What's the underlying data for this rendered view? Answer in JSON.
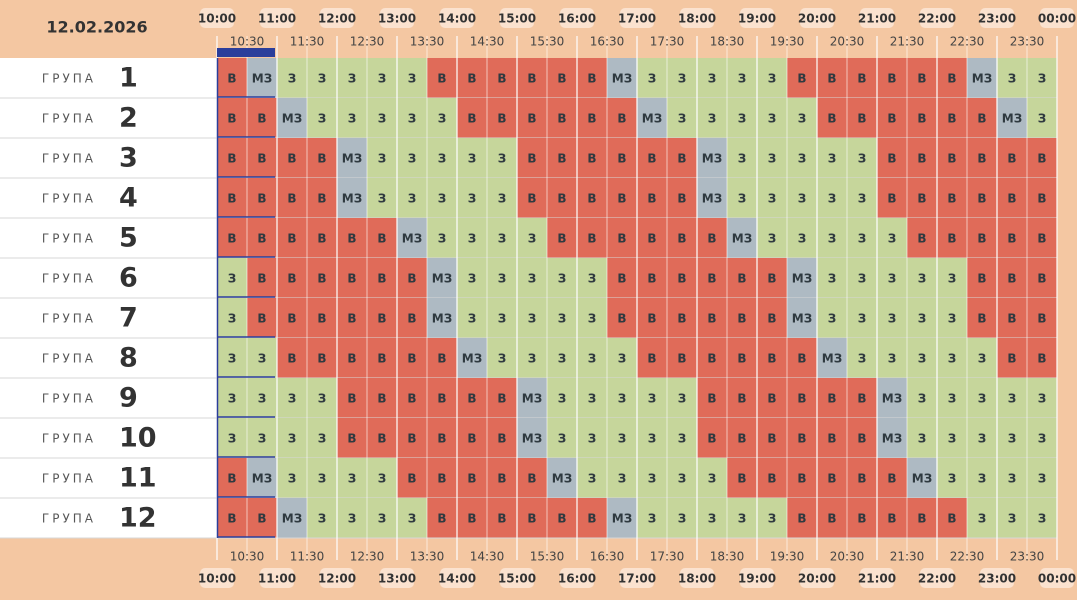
{
  "header": {
    "date": "12.02.2026",
    "hours": [
      "10:00",
      "11:00",
      "12:00",
      "13:00",
      "14:00",
      "15:00",
      "16:00",
      "17:00",
      "18:00",
      "19:00",
      "20:00",
      "21:00",
      "22:00",
      "23:00",
      "00:00"
    ],
    "half_hours": [
      "10:30",
      "11:30",
      "12:30",
      "13:30",
      "14:30",
      "15:30",
      "16:30",
      "17:30",
      "18:30",
      "19:30",
      "20:30",
      "21:30",
      "22:30",
      "23:30"
    ]
  },
  "colors": {
    "В": "#e06b59",
    "З": "#c6d69b",
    "МЗ": "#aebac3"
  },
  "groups": [
    {
      "label": "ГРУПА",
      "number": "1",
      "cells": [
        "В",
        "МЗ",
        "З",
        "З",
        "З",
        "З",
        "З",
        "В",
        "В",
        "В",
        "В",
        "В",
        "В",
        "МЗ",
        "З",
        "З",
        "З",
        "З",
        "З",
        "В",
        "В",
        "В",
        "В",
        "В",
        "В",
        "МЗ",
        "З",
        "З"
      ]
    },
    {
      "label": "ГРУПА",
      "number": "2",
      "cells": [
        "В",
        "В",
        "МЗ",
        "З",
        "З",
        "З",
        "З",
        "З",
        "В",
        "В",
        "В",
        "В",
        "В",
        "В",
        "МЗ",
        "З",
        "З",
        "З",
        "З",
        "З",
        "В",
        "В",
        "В",
        "В",
        "В",
        "В",
        "МЗ",
        "З"
      ]
    },
    {
      "label": "ГРУПА",
      "number": "3",
      "cells": [
        "В",
        "В",
        "В",
        "В",
        "МЗ",
        "З",
        "З",
        "З",
        "З",
        "З",
        "В",
        "В",
        "В",
        "В",
        "В",
        "В",
        "МЗ",
        "З",
        "З",
        "З",
        "З",
        "З",
        "В",
        "В",
        "В",
        "В",
        "В",
        "В"
      ]
    },
    {
      "label": "ГРУПА",
      "number": "4",
      "cells": [
        "В",
        "В",
        "В",
        "В",
        "МЗ",
        "З",
        "З",
        "З",
        "З",
        "З",
        "В",
        "В",
        "В",
        "В",
        "В",
        "В",
        "МЗ",
        "З",
        "З",
        "З",
        "З",
        "З",
        "В",
        "В",
        "В",
        "В",
        "В",
        "В"
      ]
    },
    {
      "label": "ГРУПА",
      "number": "5",
      "cells": [
        "В",
        "В",
        "В",
        "В",
        "В",
        "В",
        "МЗ",
        "З",
        "З",
        "З",
        "З",
        "В",
        "В",
        "В",
        "В",
        "В",
        "В",
        "МЗ",
        "З",
        "З",
        "З",
        "З",
        "З",
        "В",
        "В",
        "В",
        "В",
        "В"
      ]
    },
    {
      "label": "ГРУПА",
      "number": "6",
      "cells": [
        "З",
        "В",
        "В",
        "В",
        "В",
        "В",
        "В",
        "МЗ",
        "З",
        "З",
        "З",
        "З",
        "З",
        "В",
        "В",
        "В",
        "В",
        "В",
        "В",
        "МЗ",
        "З",
        "З",
        "З",
        "З",
        "З",
        "В",
        "В",
        "В"
      ]
    },
    {
      "label": "ГРУПА",
      "number": "7",
      "cells": [
        "З",
        "В",
        "В",
        "В",
        "В",
        "В",
        "В",
        "МЗ",
        "З",
        "З",
        "З",
        "З",
        "З",
        "В",
        "В",
        "В",
        "В",
        "В",
        "В",
        "МЗ",
        "З",
        "З",
        "З",
        "З",
        "З",
        "В",
        "В",
        "В"
      ]
    },
    {
      "label": "ГРУПА",
      "number": "8",
      "cells": [
        "З",
        "З",
        "В",
        "В",
        "В",
        "В",
        "В",
        "В",
        "МЗ",
        "З",
        "З",
        "З",
        "З",
        "З",
        "В",
        "В",
        "В",
        "В",
        "В",
        "В",
        "МЗ",
        "З",
        "З",
        "З",
        "З",
        "З",
        "В",
        "В"
      ]
    },
    {
      "label": "ГРУПА",
      "number": "9",
      "cells": [
        "З",
        "З",
        "З",
        "З",
        "В",
        "В",
        "В",
        "В",
        "В",
        "В",
        "МЗ",
        "З",
        "З",
        "З",
        "З",
        "З",
        "В",
        "В",
        "В",
        "В",
        "В",
        "В",
        "МЗ",
        "З",
        "З",
        "З",
        "З",
        "З"
      ]
    },
    {
      "label": "ГРУПА",
      "number": "10",
      "cells": [
        "З",
        "З",
        "З",
        "З",
        "В",
        "В",
        "В",
        "В",
        "В",
        "В",
        "МЗ",
        "З",
        "З",
        "З",
        "З",
        "З",
        "В",
        "В",
        "В",
        "В",
        "В",
        "В",
        "МЗ",
        "З",
        "З",
        "З",
        "З",
        "З"
      ]
    },
    {
      "label": "ГРУПА",
      "number": "11",
      "cells": [
        "В",
        "МЗ",
        "З",
        "З",
        "З",
        "З",
        "В",
        "В",
        "В",
        "В",
        "В",
        "МЗ",
        "З",
        "З",
        "З",
        "З",
        "З",
        "В",
        "В",
        "В",
        "В",
        "В",
        "В",
        "МЗ",
        "З",
        "З",
        "З",
        "З"
      ]
    },
    {
      "label": "ГРУПА",
      "number": "12",
      "cells": [
        "В",
        "В",
        "МЗ",
        "З",
        "З",
        "З",
        "З",
        "В",
        "В",
        "В",
        "В",
        "В",
        "В",
        "МЗ",
        "З",
        "З",
        "З",
        "З",
        "З",
        "В",
        "В",
        "В",
        "В",
        "В",
        "В",
        "З",
        "З",
        "З"
      ]
    }
  ]
}
